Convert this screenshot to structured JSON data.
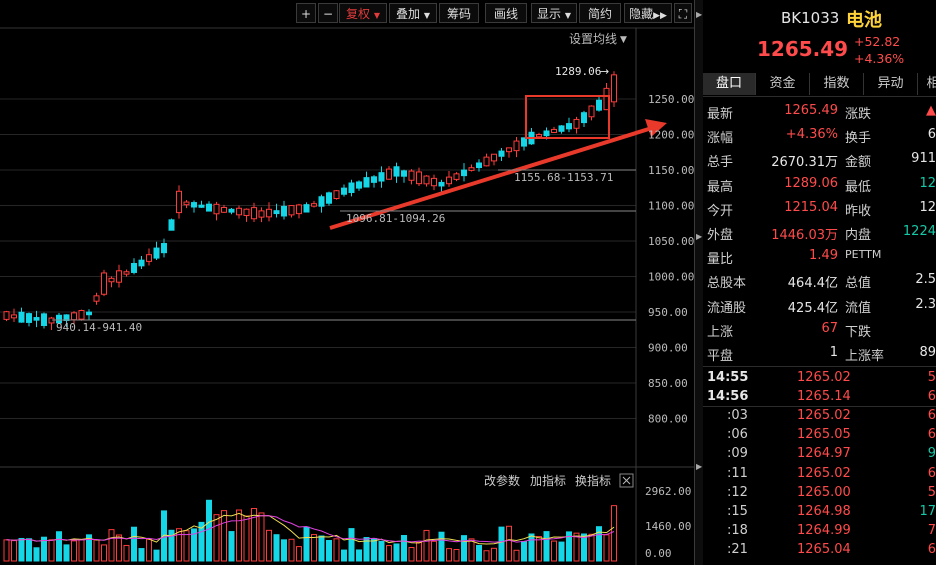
{
  "toolbar": {
    "zoom_in": "+",
    "zoom_out": "−",
    "fuquan": "复权",
    "diejia": "叠加",
    "chouma": "筹码",
    "huaxian": "画线",
    "xianshi": "显示",
    "jianyue": "简约",
    "yincang": "隐藏",
    "expand_icon": "fullscreen-icon"
  },
  "chart": {
    "ma_settings": "设置均线",
    "price_axis": [
      "1250.00",
      "1200.00",
      "1150.00",
      "1100.00",
      "1050.00",
      "1000.00",
      "950.00",
      "900.00",
      "850.00",
      "800.00"
    ],
    "annot_high": "1289.06",
    "annot_1": "1155.68-1153.71",
    "annot_2": "1096.81-1094.26",
    "annot_3": "940.14-941.40",
    "vol_buttons": [
      "改参数",
      "加指标",
      "换指标"
    ],
    "vol_axis": [
      "2962.00",
      "1460.00",
      "0.00"
    ],
    "colors": {
      "up": "#ff3b3b",
      "down": "#14d6e6",
      "ma_yellow": "#f0e050",
      "ma_magenta": "#e040e0",
      "arrow": "#e8392b"
    }
  },
  "quote": {
    "code": "BK1033",
    "name": "电池",
    "price": "1265.49",
    "change": "+52.82",
    "change_pct": "+4.36%"
  },
  "tabs": [
    "盘口",
    "资金",
    "指数",
    "异动",
    "相"
  ],
  "stats": [
    {
      "l1": "最新",
      "v1": "1265.49",
      "l2": "涨跌",
      "v2": "▲"
    },
    {
      "l1": "涨幅",
      "v1": "+4.36%",
      "l2": "换手",
      "v2": "6"
    },
    {
      "l1": "总手",
      "v1": "2670.31万",
      "l2": "金额",
      "v2": "911"
    },
    {
      "l1": "最高",
      "v1": "1289.06",
      "l2": "最低",
      "v2": "12"
    },
    {
      "l1": "今开",
      "v1": "1215.04",
      "l2": "昨收",
      "v2": "12"
    },
    {
      "l1": "外盘",
      "v1": "1446.03万",
      "l2": "内盘",
      "v2": "1224"
    },
    {
      "l1": "量比",
      "v1": "1.49",
      "l2": "PETTM",
      "v2": ""
    },
    {
      "l1": "总股本",
      "v1": "464.4亿",
      "l2": "总值",
      "v2": "2.5"
    },
    {
      "l1": "流通股",
      "v1": "425.4亿",
      "l2": "流值",
      "v2": "2.3"
    },
    {
      "l1": "上涨",
      "v1": "67",
      "l2": "下跌",
      "v2": ""
    },
    {
      "l1": "平盘",
      "v1": "1",
      "l2": "上涨率",
      "v2": "89"
    }
  ],
  "ticks": [
    {
      "t": "14:55",
      "p": "1265.02",
      "v": "5"
    },
    {
      "t": "14:56",
      "p": "1265.14",
      "v": "6"
    },
    {
      "t": ":03",
      "p": "1265.02",
      "v": "6"
    },
    {
      "t": ":06",
      "p": "1265.05",
      "v": "6"
    },
    {
      "t": ":09",
      "p": "1264.97",
      "v": "9"
    },
    {
      "t": ":11",
      "p": "1265.02",
      "v": "6"
    },
    {
      "t": ":12",
      "p": "1265.00",
      "v": "5"
    },
    {
      "t": ":15",
      "p": "1264.98",
      "v": "17"
    },
    {
      "t": ":18",
      "p": "1264.99",
      "v": "7"
    },
    {
      "t": ":21",
      "p": "1265.04",
      "v": "6"
    }
  ]
}
